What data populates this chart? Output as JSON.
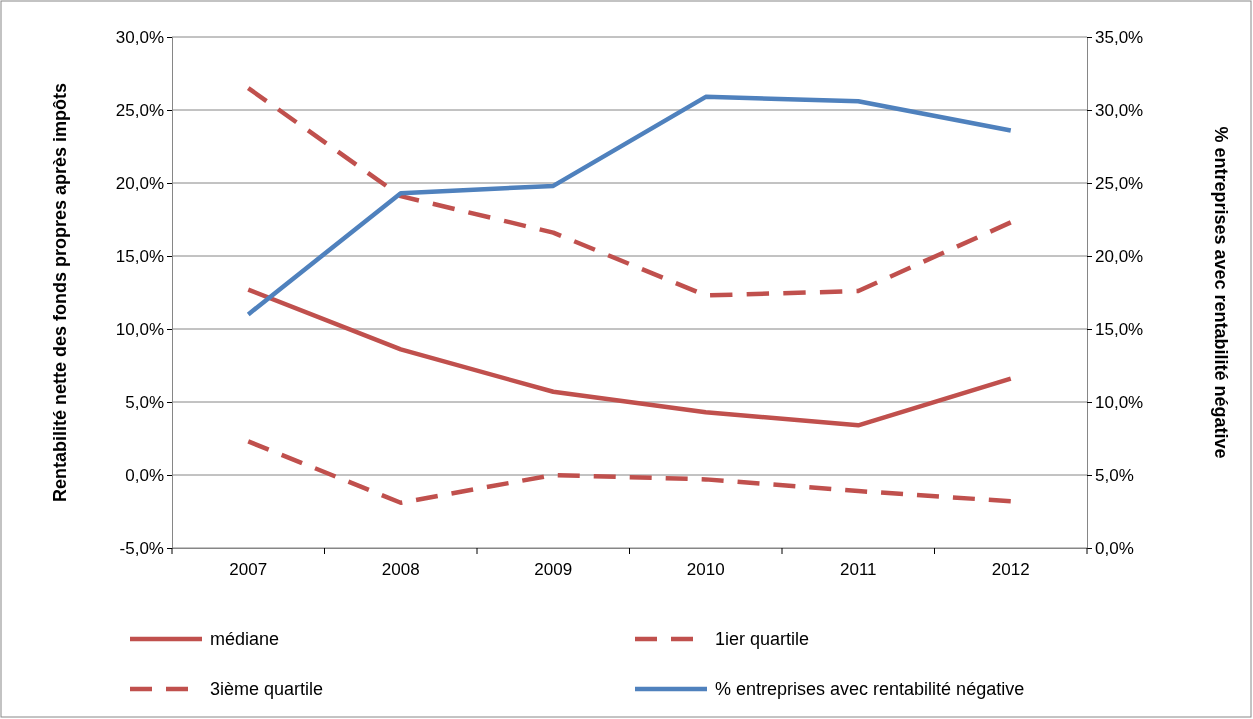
{
  "chart_data": {
    "type": "line",
    "categories": [
      "2007",
      "2008",
      "2009",
      "2010",
      "2011",
      "2012"
    ],
    "ylabel": "Rentabilité nette des fonds propres après impôts",
    "y2label": "% entreprises avec rentabilité négative",
    "ylim": [
      -5,
      30
    ],
    "yticks": [
      {
        "value": -5,
        "label": "-5,0%"
      },
      {
        "value": 0,
        "label": "0,0%"
      },
      {
        "value": 5,
        "label": "5,0%"
      },
      {
        "value": 10,
        "label": "10,0%"
      },
      {
        "value": 15,
        "label": "15,0%"
      },
      {
        "value": 20,
        "label": "20,0%"
      },
      {
        "value": 25,
        "label": "25,0%"
      },
      {
        "value": 30,
        "label": "30,0%"
      }
    ],
    "y2lim": [
      0,
      35
    ],
    "y2ticks": [
      {
        "value": 0,
        "label": "0,0%"
      },
      {
        "value": 5,
        "label": "5,0%"
      },
      {
        "value": 10,
        "label": "10,0%"
      },
      {
        "value": 15,
        "label": "15,0%"
      },
      {
        "value": 20,
        "label": "20,0%"
      },
      {
        "value": 25,
        "label": "25,0%"
      },
      {
        "value": 30,
        "label": "30,0%"
      },
      {
        "value": 35,
        "label": "35,0%"
      }
    ],
    "grid": "y",
    "legend": "bottom",
    "marker": "none",
    "series": [
      {
        "name": "médiane",
        "color": "#c0504d",
        "line_style": "solid",
        "values": [
          12.7,
          8.6,
          5.7,
          4.3,
          3.4,
          6.6
        ]
      },
      {
        "name": "1ier quartile",
        "color": "#c0504d",
        "line_style": "dashed",
        "values": [
          2.3,
          -1.9,
          0,
          -0.3,
          -1.1,
          -1.8
        ]
      },
      {
        "name": "3ième quartile",
        "color": "#c0504d",
        "line_style": "dashed",
        "values": [
          26.5,
          19.1,
          16.6,
          12.3,
          12.6,
          17.3
        ]
      },
      {
        "name": "% entreprises avec rentabilité négative",
        "color": "#4f81bd",
        "line_style": "solid",
        "axis": "y2",
        "values": [
          16.0,
          24.3,
          24.8,
          30.9,
          30.6,
          28.6
        ]
      }
    ]
  }
}
